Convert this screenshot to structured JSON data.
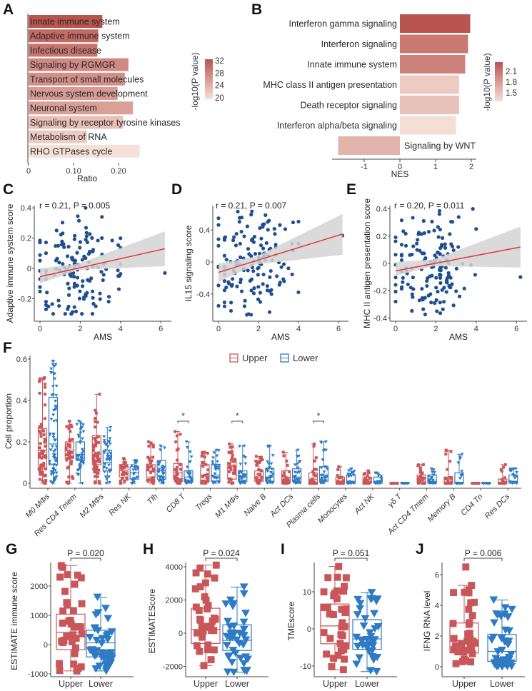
{
  "panel_labels": [
    "A",
    "B",
    "C",
    "D",
    "E",
    "F",
    "G",
    "H",
    "I",
    "J"
  ],
  "colors": {
    "upper": "#c9575a",
    "lower": "#2e7bc4",
    "scatter": "#1f4f8f",
    "regression": "#e0353a",
    "ci": "#d3d3d3"
  },
  "chart_data": [
    {
      "panel": "A",
      "type": "bar",
      "orientation": "horizontal",
      "categories": [
        "Innate immune system",
        "Adaptive immune system",
        "Infectious disease",
        "Signaling by RGMGR",
        "Transport of small molecules",
        "Nervous system development",
        "Neuronal system",
        "Signaling by receptor tyrosine kinases",
        "Metabolism of RNA",
        "RHO GTPases cycle"
      ],
      "values": [
        0.164,
        0.155,
        0.153,
        0.222,
        0.214,
        0.198,
        0.232,
        0.21,
        0.13,
        0.247
      ],
      "color_values": [
        32,
        30,
        29,
        27,
        26.5,
        25.5,
        25,
        22,
        21,
        19
      ],
      "xlabel": "Ratio",
      "xticks": [
        0,
        0.1,
        0.2
      ],
      "xtick_labels": [
        "0",
        "0.10",
        "0.20"
      ],
      "legend_title": "-log10(P value)",
      "legend_ticks": [
        32,
        28,
        24,
        20
      ],
      "legend_tick_labels": [
        "32",
        "28",
        "24",
        "20"
      ],
      "color_low": "#f6e1d8",
      "color_high": "#b9544e"
    },
    {
      "panel": "B",
      "type": "bar",
      "orientation": "horizontal",
      "categories": [
        "Interferon gamma signaling",
        "Interferon signaling",
        "Innate immune system",
        "MHC class II antigen presentation",
        "Death receptor signaling",
        "Interferon alpha/beta signaling",
        "Signaling by WNT"
      ],
      "values": [
        1.97,
        1.91,
        1.83,
        1.66,
        1.66,
        1.57,
        -1.73
      ],
      "color_values": [
        2.25,
        2.0,
        1.95,
        1.45,
        1.5,
        1.32,
        1.6
      ],
      "xlabel": "NES",
      "xticks": [
        -1,
        0,
        1,
        2
      ],
      "xtick_labels": [
        "-1",
        "0",
        "1",
        "2"
      ],
      "legend_title": "-log10(P value)",
      "legend_ticks": [
        2.1,
        1.8,
        1.5
      ],
      "legend_tick_labels": [
        "2.1",
        "1.8",
        "1.5"
      ],
      "color_low": "#f6e1d8",
      "color_high": "#b9544e"
    },
    {
      "panel": "C",
      "type": "scatter",
      "xlabel": "AMS",
      "ylabel": "Adaptive immune system score",
      "annotation": "r = 0.21, P = 0.005",
      "r": 0.21,
      "p": 0.005,
      "xlim": [
        0,
        6.3
      ],
      "ylim": [
        -0.32,
        0.42
      ],
      "xticks": [
        0,
        2,
        4,
        6
      ],
      "xtick_labels": [
        "0",
        "2",
        "4",
        "6"
      ],
      "yticks": [
        -0.2,
        0,
        0.2,
        0.4
      ],
      "ytick_labels": [
        "-0.2",
        "0",
        "0.2",
        "0.4"
      ],
      "regression": {
        "x": [
          0,
          6.2
        ],
        "y": [
          -0.055,
          0.13
        ]
      },
      "ci": {
        "x": [
          0,
          1.9,
          6.2
        ],
        "lower": [
          -0.1,
          -0.01,
          0.015
        ],
        "upper": [
          0.0,
          0.03,
          0.245
        ]
      },
      "outlier": [
        6.2,
        -0.03
      ],
      "n": 150
    },
    {
      "panel": "D",
      "type": "scatter",
      "xlabel": "AMS",
      "ylabel": "IL15 signaling score",
      "annotation": "r = 0.21, P = 0.007",
      "r": 0.21,
      "p": 0.007,
      "xlim": [
        0,
        6.3
      ],
      "ylim": [
        -0.68,
        0.68
      ],
      "xticks": [
        0,
        2,
        4,
        6
      ],
      "xtick_labels": [
        "0",
        "2",
        "4",
        "6"
      ],
      "yticks": [
        -0.4,
        0,
        0.4
      ],
      "ytick_labels": [
        "-0.4",
        "0",
        "0.4"
      ],
      "regression": {
        "x": [
          0,
          6.2
        ],
        "y": [
          -0.13,
          0.35
        ]
      },
      "ci": {
        "x": [
          0,
          1.9,
          6.2
        ],
        "lower": [
          -0.25,
          -0.03,
          0.09
        ],
        "upper": [
          -0.02,
          0.07,
          0.6
        ]
      },
      "outlier": [
        6.2,
        0.33
      ],
      "n": 150
    },
    {
      "panel": "E",
      "type": "scatter",
      "xlabel": "AMS",
      "ylabel": "MHC II antigen presentation score",
      "annotation": "r = 0.20, P = 0.011",
      "r": 0.2,
      "p": 0.011,
      "xlim": [
        0,
        6.3
      ],
      "ylim": [
        -0.4,
        0.42
      ],
      "xticks": [
        0,
        2,
        4,
        6
      ],
      "xtick_labels": [
        "0",
        "2",
        "4",
        "6"
      ],
      "yticks": [
        -0.4,
        -0.2,
        0,
        0.2,
        0.4
      ],
      "ytick_labels": [
        "-0.4",
        "-0.2",
        "0",
        "0.2",
        "0.4"
      ],
      "regression": {
        "x": [
          0,
          6.2
        ],
        "y": [
          -0.055,
          0.12
        ]
      },
      "ci": {
        "x": [
          0,
          1.9,
          6.2
        ],
        "lower": [
          -0.09,
          -0.02,
          -0.03
        ],
        "upper": [
          0.01,
          0.03,
          0.27
        ]
      },
      "outlier": [
        6.2,
        -0.1
      ],
      "n": 150
    },
    {
      "panel": "F",
      "type": "boxplot",
      "ylabel": "Cell proportion",
      "legend": [
        "Upper",
        "Lower"
      ],
      "legend_position": "top",
      "ylim": [
        0,
        0.6
      ],
      "yticks": [
        0,
        0.2,
        0.4,
        0.6
      ],
      "ytick_labels": [
        "0",
        "0.2",
        "0.4",
        "0.6"
      ],
      "categories": [
        "M0 MΦs",
        "Res CD4 Tmem",
        "M2 MΦs",
        "Res NK",
        "Tfh",
        "CD8  T",
        "Tregs",
        "M1 MΦs",
        "Naive B",
        "Act DCs",
        "Plasma cells",
        "Monocytes",
        "Act NK",
        "γδ T",
        "Act CD4 Tmem",
        "Memory B",
        "CD4 Tn",
        "Res DCs"
      ],
      "stats_order": [
        "min",
        "q1",
        "median",
        "q3",
        "max"
      ],
      "upper": [
        [
          0,
          0.07,
          0.16,
          0.265,
          0.51
        ],
        [
          0,
          0.12,
          0.16,
          0.2,
          0.3
        ],
        [
          0,
          0.09,
          0.14,
          0.23,
          0.43
        ],
        [
          0,
          0.03,
          0.06,
          0.09,
          0.12
        ],
        [
          0,
          0.03,
          0.06,
          0.09,
          0.2
        ],
        [
          0,
          0.02,
          0.05,
          0.095,
          0.25
        ],
        [
          0,
          0.01,
          0.04,
          0.09,
          0.15
        ],
        [
          0,
          0.02,
          0.06,
          0.1,
          0.19
        ],
        [
          0,
          0.01,
          0.03,
          0.06,
          0.13
        ],
        [
          0,
          0.01,
          0.03,
          0.06,
          0.15
        ],
        [
          0,
          0,
          0.02,
          0.05,
          0.19
        ],
        [
          0,
          0,
          0.01,
          0.03,
          0.08
        ],
        [
          0,
          0,
          0.01,
          0.03,
          0.06
        ],
        [
          0,
          0,
          0,
          0,
          0
        ],
        [
          0,
          0,
          0.01,
          0.04,
          0.09
        ],
        [
          0,
          0,
          0,
          0.03,
          0.16
        ],
        [
          0,
          0,
          0,
          0,
          0
        ],
        [
          0,
          0,
          0,
          0.02,
          0.09
        ]
      ],
      "lower": [
        [
          0,
          0.09,
          0.19,
          0.415,
          0.59
        ],
        [
          0,
          0.11,
          0.14,
          0.2,
          0.3
        ],
        [
          0,
          0.06,
          0.1,
          0.16,
          0.27
        ],
        [
          0,
          0.02,
          0.05,
          0.08,
          0.11
        ],
        [
          0,
          0.02,
          0.06,
          0.11,
          0.18
        ],
        [
          0,
          0.01,
          0.03,
          0.06,
          0.2
        ],
        [
          0,
          0.01,
          0.04,
          0.09,
          0.16
        ],
        [
          0,
          0.01,
          0.03,
          0.06,
          0.18
        ],
        [
          0,
          0.01,
          0.03,
          0.07,
          0.18
        ],
        [
          0,
          0.01,
          0.03,
          0.07,
          0.16
        ],
        [
          0,
          0.01,
          0.04,
          0.08,
          0.2
        ],
        [
          0,
          0,
          0.01,
          0.04,
          0.07
        ],
        [
          0,
          0,
          0.01,
          0.03,
          0.05
        ],
        [
          0,
          0,
          0,
          0,
          0
        ],
        [
          0,
          0,
          0.01,
          0.04,
          0.07
        ],
        [
          0,
          0,
          0,
          0.05,
          0.14
        ],
        [
          0,
          0,
          0,
          0,
          0
        ],
        [
          0,
          0,
          0.01,
          0.04,
          0.07
        ]
      ],
      "significance": [
        {
          "category": 5,
          "label": "*"
        },
        {
          "category": 7,
          "label": "*"
        },
        {
          "category": 10,
          "label": "*"
        }
      ]
    },
    {
      "panel": "G",
      "type": "boxplot",
      "ylabel": "ESTIMATE immune score",
      "categories": [
        "Upper",
        "Lower"
      ],
      "p_label": "P = 0.020",
      "yticks": [
        -1000,
        0,
        1000,
        2000
      ],
      "ytick_labels": [
        "-1000",
        "0",
        "1000",
        "2000"
      ],
      "upper": [
        -900,
        -170,
        420,
        1040,
        2700
      ],
      "lower": [
        -900,
        -420,
        60,
        490,
        1620
      ]
    },
    {
      "panel": "H",
      "type": "boxplot",
      "ylabel": "ESTIMATEScore",
      "categories": [
        "Upper",
        "Lower"
      ],
      "p_label": "P = 0.024",
      "yticks": [
        -2000,
        0,
        2000,
        4000
      ],
      "ytick_labels": [
        "-2000",
        "0",
        "2000",
        "4000"
      ],
      "upper": [
        -1950,
        -620,
        220,
        1500,
        4100
      ],
      "lower": [
        -2350,
        -1040,
        -430,
        500,
        2780
      ]
    },
    {
      "panel": "I",
      "type": "boxplot",
      "ylabel": "TMEscore",
      "categories": [
        "Upper",
        "Lower"
      ],
      "p_label": "P = 0.051",
      "yticks": [
        -10,
        0,
        10
      ],
      "ytick_labels": [
        "-10",
        "0",
        "10"
      ],
      "upper": [
        -11,
        -4,
        0.8,
        6.7,
        16.8
      ],
      "lower": [
        -11.5,
        -5.5,
        -2.7,
        2.5,
        9.8
      ]
    },
    {
      "panel": "J",
      "type": "boxplot",
      "ylabel": "IFNG RNA level",
      "categories": [
        "Upper",
        "Lower"
      ],
      "p_label": "P = 0.006",
      "yticks": [
        0,
        2,
        4,
        6
      ],
      "ytick_labels": [
        "0",
        "2",
        "4",
        "6"
      ],
      "upper": [
        0.2,
        0.9,
        1.7,
        2.85,
        5.3
      ],
      "lower": [
        0,
        0.35,
        1.0,
        2.1,
        4.35
      ],
      "upper_outliers": [
        6.5
      ]
    }
  ]
}
